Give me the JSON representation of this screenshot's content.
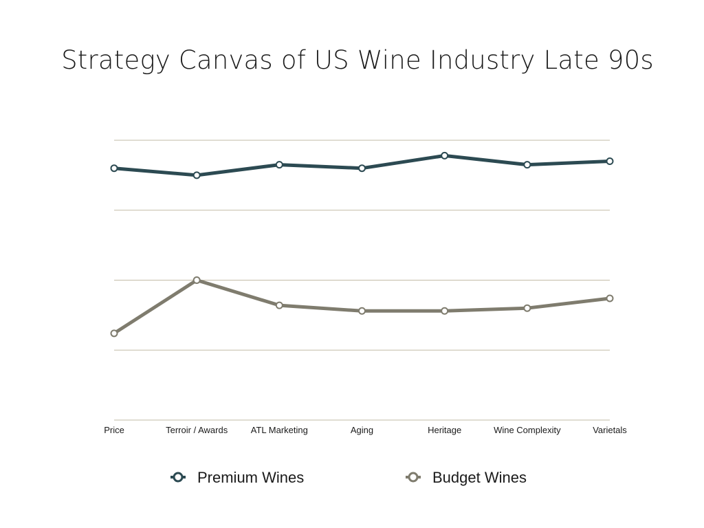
{
  "chart_data": {
    "type": "line",
    "title": "Strategy Canvas of US Wine Industry Late 90s",
    "categories": [
      "Price",
      "Terroir / Awards",
      "ATL Marketing",
      "Aging",
      "Heritage",
      "Wine Complexity",
      "Varietals"
    ],
    "ylim": [
      0,
      4
    ],
    "grid": true,
    "legend_position": "bottom",
    "series": [
      {
        "name": "Premium Wines",
        "color": "#2c4a52",
        "values": [
          3.6,
          3.5,
          3.65,
          3.6,
          3.78,
          3.65,
          3.7
        ]
      },
      {
        "name": "Budget Wines",
        "color": "#7f7c6e",
        "values": [
          1.24,
          2.0,
          1.64,
          1.56,
          1.56,
          1.6,
          1.74
        ]
      }
    ]
  }
}
